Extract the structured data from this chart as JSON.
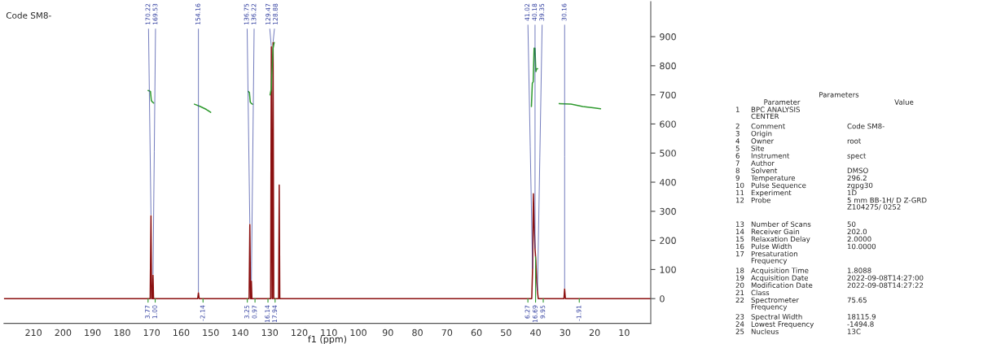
{
  "chart_data": {
    "type": "line",
    "title": "Code SM8-",
    "xlabel": "f1 (ppm)",
    "xlim": [
      220,
      1
    ],
    "ylim": [
      -85,
      1020
    ],
    "xticks": [
      210,
      200,
      190,
      180,
      170,
      160,
      150,
      140,
      130,
      120,
      110,
      100,
      90,
      80,
      70,
      60,
      50,
      40,
      30,
      20,
      10
    ],
    "yticks": [
      0,
      100,
      200,
      300,
      400,
      500,
      600,
      700,
      800,
      900
    ],
    "series": [
      {
        "color": "#8b1010",
        "x": [
          220,
          170.5,
          170.22,
          170.0,
          169.7,
          169.53,
          169.35,
          154.4,
          154.16,
          153.9,
          137.0,
          136.75,
          136.5,
          136.35,
          136.22,
          136.05,
          129.7,
          129.47,
          129.2,
          129.1,
          128.88,
          128.65,
          127.0,
          126.8,
          126.6,
          41.3,
          41.02,
          40.74,
          40.46,
          40.18,
          39.9,
          39.62,
          39.35,
          39.1,
          30.4,
          30.16,
          29.9,
          1
        ],
        "values": [
          0,
          0,
          285,
          0,
          0,
          80,
          0,
          0,
          20,
          0,
          0,
          255,
          0,
          0,
          60,
          0,
          0,
          865,
          0,
          0,
          880,
          0,
          0,
          390,
          0,
          0,
          100,
          360,
          250,
          170,
          130,
          60,
          25,
          0,
          0,
          33,
          0,
          0
        ]
      },
      {
        "color": "#2e9a2e",
        "x": [
          171.2,
          170.4,
          170.1,
          169.7,
          169.3
        ],
        "values": [
          715,
          712,
          680,
          675,
          672
        ]
      },
      {
        "color": "#2e9a2e",
        "x": [
          155.5,
          153.5,
          151.5,
          150
        ],
        "values": [
          668,
          660,
          650,
          640
        ]
      },
      {
        "color": "#2e9a2e",
        "x": [
          137.3,
          136.9,
          136.6,
          136.2,
          135.8
        ],
        "values": [
          712,
          708,
          675,
          670,
          668
        ]
      },
      {
        "color": "#2e9a2e",
        "x": [
          129.9,
          129.5,
          129.2,
          128.9,
          128.5
        ],
        "values": [
          700,
          720,
          790,
          860,
          880
        ]
      },
      {
        "color": "#2e9a2e",
        "x": [
          41.4,
          41.1,
          40.8,
          40.5,
          40.2,
          39.9,
          39.6,
          39.3
        ],
        "values": [
          660,
          740,
          745,
          860,
          860,
          780,
          790,
          790
        ]
      },
      {
        "color": "#2e9a2e",
        "x": [
          32,
          28,
          24,
          20,
          18
        ],
        "values": [
          670,
          668,
          660,
          655,
          652
        ]
      }
    ],
    "annotations": [
      {
        "text": "170.22",
        "x": 170.22,
        "y": 285
      },
      {
        "text": "169.53",
        "x": 169.53,
        "y": 80
      },
      {
        "text": "154.16",
        "x": 154.16,
        "y": 20
      },
      {
        "text": "136.75",
        "x": 136.75,
        "y": 255
      },
      {
        "text": "136.22",
        "x": 136.22,
        "y": 60
      },
      {
        "text": "129.47",
        "x": 129.47,
        "y": 865
      },
      {
        "text": "128.88",
        "x": 128.88,
        "y": 880
      },
      {
        "text": "41.02",
        "x": 41.02,
        "y": 100
      },
      {
        "text": "40.18",
        "x": 40.18,
        "y": 170
      },
      {
        "text": "39.35",
        "x": 39.35,
        "y": 25
      },
      {
        "text": "30.16",
        "x": 30.16,
        "y": 33
      },
      {
        "text": "3.77",
        "x": 171.2,
        "y": 0
      },
      {
        "text": "1.00",
        "x": 168.8,
        "y": 0
      },
      {
        "text": "-2.14",
        "x": 152.6,
        "y": 0
      },
      {
        "text": "3.25",
        "x": 137.6,
        "y": 0
      },
      {
        "text": "0.97",
        "x": 135.0,
        "y": 0
      },
      {
        "text": "16.14",
        "x": 130.6,
        "y": 0
      },
      {
        "text": "17.94",
        "x": 128.2,
        "y": 0
      },
      {
        "text": "6.27",
        "x": 42.6,
        "y": 0
      },
      {
        "text": "16.69",
        "x": 40.0,
        "y": 144
      },
      {
        "text": "9.95",
        "x": 37.4,
        "y": 0
      },
      {
        "text": "-1.91",
        "x": 25.2,
        "y": 0
      },
      "Parameters",
      "Parameter\tValue",
      "1\tBPC ANALYSIS\nCENTER\t",
      "2\tComment\tCode SM8-",
      "3\tOrigin\t",
      "4\tOwner\troot",
      "5\tSite\t",
      "6\tInstrument\tspect",
      "7\tAuthor\t",
      "8\tSolvent\tDMSO",
      "9\tTemperature\t296.2",
      "10\tPulse Sequence\tzgpg30",
      "11\tExperiment\t1D",
      "12\tProbe\t5 mm BB-1H/ D Z-GRD\nZ104275/ 0252\n",
      "13\tNumber of Scans\t50",
      "14\tReceiver Gain\t202.0",
      "15\tRelaxation Delay\t2.0000",
      "16\tPulse Width\t10.0000",
      "17\tPresaturation\nFrequency\t",
      "18\tAcquisition Time\t1.8088",
      "19\tAcquisition Date\t2022-09-08T14:27:00",
      "20\tModification Date\t2022-09-08T14:27:22",
      "21\tClass\t",
      "22\tSpectrometer\nFrequency\t75.65",
      "23\tSpectral Width\t18115.9",
      "24\tLowest Frequency\t-1494.8",
      "25\tNucleus\t13C"
    ]
  }
}
